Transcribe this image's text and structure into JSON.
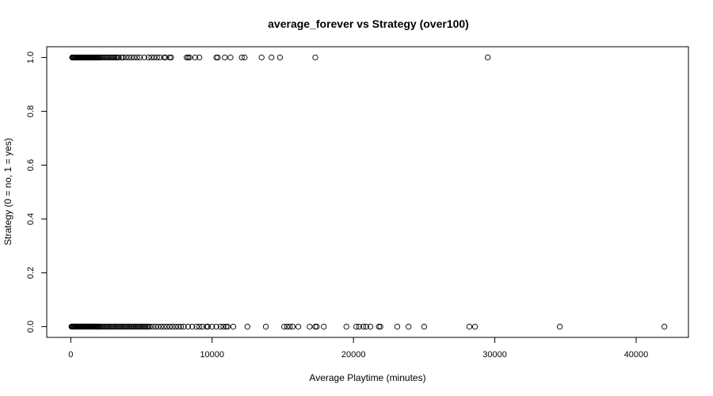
{
  "chart_data": {
    "type": "scatter",
    "title": "average_forever vs Strategy (over100)",
    "xlabel": "Average Playtime (minutes)",
    "ylabel": "Strategy (0 = no, 1 = yes)",
    "xlim": [
      -1700,
      43700
    ],
    "ylim": [
      -0.04,
      1.04
    ],
    "x_ticks": [
      0,
      10000,
      20000,
      30000,
      40000
    ],
    "y_ticks": [
      0.0,
      0.2,
      0.4,
      0.6,
      0.8,
      1.0
    ],
    "x_tick_labels": [
      "0",
      "10000",
      "20000",
      "30000",
      "40000"
    ],
    "y_tick_labels": [
      "0.0",
      "0.2",
      "0.4",
      "0.6",
      "0.8",
      "1.0"
    ],
    "grid": false,
    "legend": "none",
    "series": [
      {
        "values_y": 1,
        "x": [
          100,
          150,
          200,
          250,
          300,
          350,
          400,
          450,
          500,
          550,
          600,
          650,
          700,
          750,
          800,
          850,
          900,
          950,
          1000,
          1050,
          1100,
          1150,
          1200,
          1250,
          1300,
          1350,
          1400,
          1450,
          1500,
          1550,
          1600,
          1650,
          1700,
          1750,
          1800,
          1850,
          1900,
          1950,
          2000,
          2100,
          2200,
          2300,
          2400,
          2500,
          2600,
          2700,
          2800,
          2900,
          3000,
          3100,
          3200,
          3300,
          3400,
          3600,
          3700,
          3900,
          4100,
          4300,
          4500,
          4700,
          4900,
          5200,
          5500,
          5700,
          5900,
          6100,
          6300,
          6600,
          6700,
          7000,
          7100,
          8200,
          8300,
          8400,
          8800,
          9100,
          10300,
          10400,
          10900,
          11300,
          12100,
          12300,
          13500,
          14200,
          14800,
          17300,
          29500
        ]
      },
      {
        "values_y": 0,
        "x": [
          50,
          100,
          150,
          200,
          250,
          300,
          350,
          400,
          450,
          500,
          550,
          600,
          650,
          700,
          750,
          800,
          850,
          900,
          950,
          1000,
          1050,
          1100,
          1150,
          1200,
          1250,
          1300,
          1350,
          1400,
          1450,
          1500,
          1550,
          1600,
          1650,
          1700,
          1750,
          1800,
          1850,
          1900,
          1950,
          2000,
          2100,
          2200,
          2300,
          2400,
          2500,
          2600,
          2700,
          2800,
          2900,
          3000,
          3100,
          3200,
          3300,
          3400,
          3500,
          3600,
          3700,
          3800,
          3900,
          4000,
          4100,
          4200,
          4300,
          4400,
          4500,
          4600,
          4700,
          4800,
          4900,
          5000,
          5100,
          5200,
          5300,
          5400,
          5500,
          5600,
          5800,
          6000,
          6200,
          6400,
          6600,
          6800,
          7000,
          7200,
          7400,
          7600,
          7800,
          8000,
          8300,
          8600,
          8900,
          9100,
          9300,
          9600,
          9700,
          10000,
          10300,
          10600,
          10800,
          11000,
          11100,
          11500,
          12500,
          13800,
          15100,
          15300,
          15500,
          15700,
          16100,
          16900,
          17300,
          17400,
          17900,
          19500,
          20200,
          20400,
          20700,
          20900,
          21200,
          21800,
          21900,
          23100,
          23900,
          25000,
          28200,
          28600,
          34600,
          42000
        ]
      }
    ]
  }
}
